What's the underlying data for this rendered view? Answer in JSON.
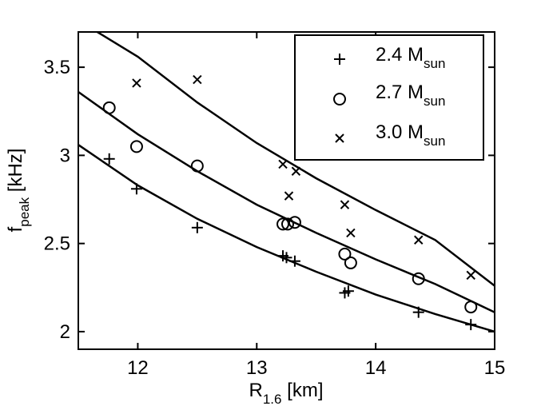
{
  "chart_data": {
    "type": "scatter",
    "title": "",
    "xlabel": {
      "main": "R",
      "sub": "1.6",
      "unit": " [km]"
    },
    "ylabel": {
      "main": "f",
      "sub": "peak",
      "unit": " [kHz]"
    },
    "xlim": [
      11.5,
      15
    ],
    "ylim": [
      1.9,
      3.7
    ],
    "xticks": [
      12,
      13,
      14,
      15
    ],
    "xtick_labels": [
      "12",
      "13",
      "14",
      "15"
    ],
    "yticks": [
      2,
      2.5,
      3,
      3.5
    ],
    "ytick_labels": [
      "2",
      "2.5",
      "3",
      "3.5"
    ],
    "grid": false,
    "legend_position": "top-right",
    "series": [
      {
        "name": "2.4 M",
        "name_sub": "sun",
        "marker": "plus",
        "x": [
          11.76,
          11.99,
          12.5,
          13.22,
          13.25,
          13.32,
          13.74,
          13.77,
          14.36,
          14.8
        ],
        "y": [
          2.98,
          2.81,
          2.59,
          2.43,
          2.42,
          2.4,
          2.22,
          2.23,
          2.11,
          2.04
        ],
        "fit": [
          [
            11.5,
            3.06
          ],
          [
            12.0,
            2.83
          ],
          [
            12.5,
            2.64
          ],
          [
            13.0,
            2.48
          ],
          [
            13.5,
            2.34
          ],
          [
            14.0,
            2.21
          ],
          [
            14.5,
            2.1
          ],
          [
            15.0,
            2.0
          ]
        ]
      },
      {
        "name": "2.7 M",
        "name_sub": "sun",
        "marker": "circle",
        "x": [
          11.76,
          11.99,
          12.5,
          13.22,
          13.26,
          13.32,
          13.74,
          13.79,
          14.36,
          14.8
        ],
        "y": [
          3.27,
          3.05,
          2.94,
          2.61,
          2.61,
          2.62,
          2.44,
          2.39,
          2.3,
          2.14
        ],
        "fit": [
          [
            11.5,
            3.36
          ],
          [
            12.0,
            3.12
          ],
          [
            12.5,
            2.91
          ],
          [
            13.0,
            2.72
          ],
          [
            13.5,
            2.56
          ],
          [
            14.0,
            2.41
          ],
          [
            14.5,
            2.27
          ],
          [
            15.0,
            2.11
          ]
        ]
      },
      {
        "name": "3.0 M",
        "name_sub": "sun",
        "marker": "cross",
        "x": [
          11.99,
          12.5,
          13.22,
          13.27,
          13.33,
          13.74,
          13.79,
          14.36,
          14.8
        ],
        "y": [
          3.41,
          3.43,
          2.95,
          2.77,
          2.91,
          2.72,
          2.56,
          2.52,
          2.32
        ],
        "fit": [
          [
            11.66,
            3.7
          ],
          [
            12.0,
            3.56
          ],
          [
            12.5,
            3.3
          ],
          [
            13.0,
            3.07
          ],
          [
            13.5,
            2.87
          ],
          [
            14.0,
            2.69
          ],
          [
            14.5,
            2.52
          ],
          [
            15.0,
            2.26
          ]
        ]
      }
    ]
  }
}
